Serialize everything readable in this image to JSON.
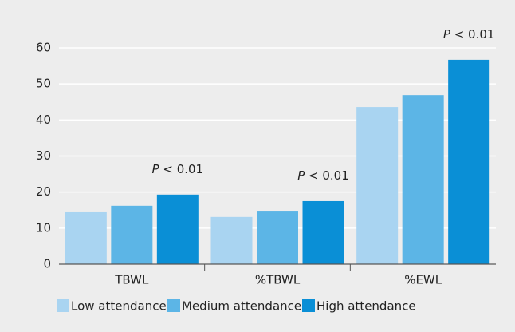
{
  "chart_data": {
    "type": "bar",
    "categories": [
      "TBWL",
      "%TBWL",
      "%EWL"
    ],
    "series": [
      {
        "name": "Low attendance",
        "color": "#a9d4f1",
        "values": [
          14.4,
          13.1,
          43.6
        ]
      },
      {
        "name": "Medium attendance",
        "color": "#5cb5e6",
        "values": [
          16.2,
          14.6,
          46.9
        ]
      },
      {
        "name": "High attendance",
        "color": "#0a8fd6",
        "values": [
          19.3,
          17.5,
          56.7
        ]
      }
    ],
    "annotations": [
      "P < 0.01",
      "P < 0.01",
      "P < 0.01"
    ],
    "ylim": [
      0,
      60
    ],
    "yticks": [
      0,
      10,
      20,
      30,
      40,
      50,
      60
    ],
    "grid": true,
    "legend": "bottom"
  }
}
